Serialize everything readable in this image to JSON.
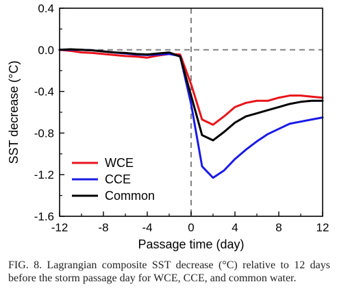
{
  "caption": "FIG. 8. Lagrangian composite SST decrease (°C) relative to 12 days before the storm passage day for WCE, CCE, and common water.",
  "chart_data": {
    "type": "line",
    "title": "",
    "xlabel": "Passage time (day)",
    "ylabel": "SST decrease (°C)",
    "xlim": [
      -12,
      12
    ],
    "ylim": [
      -1.6,
      0.4
    ],
    "xticks": [
      -12,
      -8,
      -4,
      0,
      4,
      8,
      12
    ],
    "yticks": [
      0.4,
      0.0,
      -0.4,
      -0.8,
      -1.2,
      -1.6
    ],
    "xtick_labels": [
      "-12",
      "-8",
      "-4",
      "0",
      "4",
      "8",
      "12"
    ],
    "ytick_labels": [
      "0.4",
      "0.0",
      "-0.4",
      "-0.8",
      "-1.2",
      "-1.6"
    ],
    "reference_lines": [
      {
        "axis": "y",
        "value": 0.0,
        "style": "dashed",
        "color": "#808080"
      },
      {
        "axis": "x",
        "value": 0,
        "style": "dashed",
        "color": "#808080"
      }
    ],
    "legend_position": "lower-left",
    "grid": false,
    "series": [
      {
        "name": "WCE",
        "color": "#e8141b",
        "x": [
          -12,
          -11,
          -10,
          -9,
          -8,
          -7,
          -6,
          -5,
          -4,
          -3,
          -2,
          -1,
          0,
          1,
          2,
          3,
          4,
          5,
          6,
          7,
          8,
          9,
          10,
          11,
          12
        ],
        "y": [
          0.0,
          -0.01,
          -0.025,
          -0.03,
          -0.04,
          -0.05,
          -0.06,
          -0.065,
          -0.075,
          -0.055,
          -0.04,
          -0.045,
          -0.33,
          -0.67,
          -0.72,
          -0.64,
          -0.55,
          -0.51,
          -0.49,
          -0.49,
          -0.46,
          -0.44,
          -0.44,
          -0.45,
          -0.46
        ]
      },
      {
        "name": "CCE",
        "color": "#1a1ae6",
        "x": [
          -12,
          -11,
          -10,
          -9,
          -8,
          -7,
          -6,
          -5,
          -4,
          -3,
          -2,
          -1,
          0,
          1,
          2,
          3,
          4,
          5,
          6,
          7,
          8,
          9,
          10,
          11,
          12
        ],
        "y": [
          0.0,
          0.0,
          0.0,
          -0.005,
          -0.015,
          -0.025,
          -0.035,
          -0.045,
          -0.05,
          -0.045,
          -0.04,
          -0.06,
          -0.52,
          -1.12,
          -1.23,
          -1.16,
          -1.05,
          -0.96,
          -0.88,
          -0.81,
          -0.76,
          -0.71,
          -0.69,
          -0.67,
          -0.65
        ]
      },
      {
        "name": "Common",
        "color": "#000000",
        "x": [
          -12,
          -11,
          -10,
          -9,
          -8,
          -7,
          -6,
          -5,
          -4,
          -3,
          -2,
          -1,
          0,
          1,
          2,
          3,
          4,
          5,
          6,
          7,
          8,
          9,
          10,
          11,
          12
        ],
        "y": [
          0.0,
          0.005,
          0.0,
          -0.005,
          -0.015,
          -0.025,
          -0.03,
          -0.04,
          -0.045,
          -0.035,
          -0.025,
          -0.065,
          -0.44,
          -0.82,
          -0.87,
          -0.79,
          -0.7,
          -0.64,
          -0.61,
          -0.58,
          -0.55,
          -0.52,
          -0.5,
          -0.49,
          -0.49
        ]
      }
    ]
  }
}
